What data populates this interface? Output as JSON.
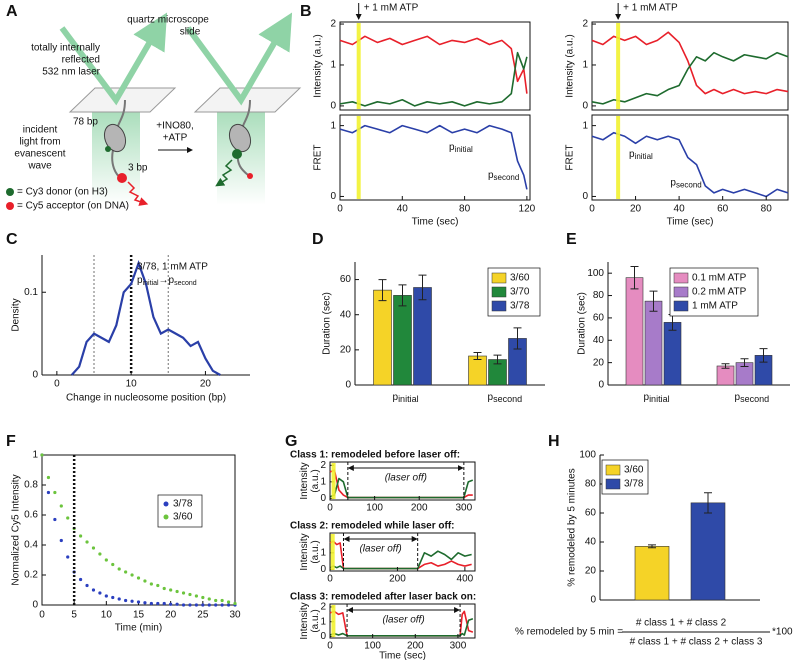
{
  "diagram": {
    "panel": "A",
    "slide_label": [
      "quartz microscope",
      "slide"
    ],
    "laser_label": [
      "totally internally",
      "reflected",
      "532 nm laser"
    ],
    "incident_label": [
      "incident",
      "light from",
      "evanescent",
      "wave"
    ],
    "bp_long": "78 bp",
    "bp_short": "3 bp",
    "step_label": [
      "+INO80,",
      "+ATP"
    ],
    "legend": [
      {
        "color": "#1e6b2e",
        "text": "= Cy3 donor (on H3)"
      },
      {
        "color": "#e8202a",
        "text": "= Cy5 acceptor (on DNA)"
      }
    ]
  },
  "chart_data": [
    {
      "type": "trace",
      "panel": "B",
      "annotation": "+ 1 mM ATP",
      "atp_time": 12,
      "x": [
        0,
        8,
        16,
        24,
        32,
        40,
        48,
        56,
        64,
        72,
        80,
        88,
        96,
        104,
        110,
        114,
        118,
        120
      ],
      "xlim": [
        0,
        122
      ],
      "xticks": [
        0,
        40,
        80,
        120
      ],
      "xlabel": "Time (sec)",
      "subplots": [
        {
          "ylabel": "Intensity (a.u.)",
          "ylim": [
            -0.1,
            2.05
          ],
          "yticks": [
            0,
            1,
            2
          ],
          "series": [
            {
              "color": "#e8202a",
              "values": [
                1.6,
                1.5,
                1.7,
                1.55,
                1.65,
                1.5,
                1.6,
                1.7,
                1.5,
                1.6,
                1.55,
                1.65,
                1.5,
                1.6,
                1.4,
                0.6,
                0.9,
                0.3
              ]
            },
            {
              "color": "#1e6b2e",
              "values": [
                0.05,
                0.1,
                0.0,
                0.1,
                0.05,
                0.15,
                0.0,
                0.1,
                0.05,
                0.1,
                0.0,
                0.1,
                0.05,
                0.1,
                0.3,
                1.3,
                0.9,
                1.2
              ]
            }
          ]
        },
        {
          "ylabel": "FRET",
          "ylim": [
            -0.05,
            1.15
          ],
          "yticks": [
            0,
            1
          ],
          "series": [
            {
              "color": "#2a3fa8",
              "values": [
                0.95,
                0.9,
                1.0,
                0.95,
                0.9,
                1.0,
                0.95,
                0.9,
                1.0,
                0.9,
                0.95,
                0.9,
                1.0,
                0.95,
                0.9,
                0.5,
                0.3,
                0.1
              ]
            }
          ],
          "state_labels": [
            [
              "p",
              "initial"
            ],
            [
              "p",
              "second"
            ]
          ]
        }
      ]
    },
    {
      "type": "trace",
      "annotation": "+ 1 mM ATP",
      "atp_time": 12,
      "x": [
        0,
        5,
        10,
        15,
        20,
        25,
        30,
        35,
        40,
        44,
        48,
        52,
        56,
        60,
        65,
        70,
        75,
        80,
        85,
        90
      ],
      "xlim": [
        0,
        90
      ],
      "xticks": [
        0,
        20,
        40,
        60,
        80
      ],
      "xlabel": "Time (sec)",
      "subplots": [
        {
          "ylabel": "Intensity (a.u.)",
          "ylim": [
            -0.1,
            2.05
          ],
          "yticks": [
            0,
            1,
            2
          ],
          "series": [
            {
              "color": "#e8202a",
              "values": [
                1.6,
                1.5,
                1.7,
                1.6,
                1.7,
                1.5,
                1.6,
                1.8,
                1.55,
                1.1,
                0.5,
                0.3,
                0.4,
                0.3,
                0.4,
                0.3,
                0.35,
                0.3,
                0.4,
                0.35
              ]
            },
            {
              "color": "#1e6b2e",
              "values": [
                0.1,
                0.05,
                0.15,
                0.1,
                0.2,
                0.3,
                0.25,
                0.4,
                0.5,
                0.9,
                1.2,
                1.1,
                1.3,
                1.2,
                1.1,
                1.25,
                1.2,
                1.15,
                1.3,
                1.2
              ]
            }
          ]
        },
        {
          "ylabel": "FRET",
          "ylim": [
            -0.05,
            1.15
          ],
          "yticks": [
            0,
            1
          ],
          "series": [
            {
              "color": "#2a3fa8",
              "values": [
                0.85,
                0.8,
                0.9,
                0.85,
                0.75,
                0.85,
                0.8,
                0.85,
                0.8,
                0.55,
                0.45,
                0.15,
                0.05,
                0.1,
                0.05,
                0.1,
                0.05,
                0.0,
                0.1,
                0.05
              ]
            }
          ],
          "state_labels": [
            [
              "p",
              "initial"
            ],
            [
              "p",
              "second"
            ]
          ]
        }
      ]
    },
    {
      "type": "density",
      "panel": "C",
      "annotation": "3/78, 1 mM ATP",
      "transition": {
        "from": [
          "p",
          "initial"
        ],
        "arrow": "→",
        "to": [
          "p",
          "second"
        ]
      },
      "x": [
        2,
        3,
        4,
        5,
        6,
        7,
        8,
        9,
        10,
        11,
        12,
        13,
        14,
        15,
        16,
        17,
        18,
        19,
        20,
        21,
        22
      ],
      "values": [
        0,
        0.01,
        0.04,
        0.05,
        0.045,
        0.04,
        0.06,
        0.1,
        0.11,
        0.135,
        0.11,
        0.07,
        0.05,
        0.055,
        0.05,
        0.045,
        0.035,
        0.04,
        0.02,
        0.005,
        0
      ],
      "color": "#2a3fa8",
      "vlines": [
        5,
        10,
        15
      ],
      "xlim": [
        -2,
        26
      ],
      "xticks": [
        0,
        10,
        20
      ],
      "ylim": [
        0,
        0.145
      ],
      "yticks": [
        0,
        0.1
      ],
      "xlabel": "Change in nucleosome position (bp)",
      "ylabel": "Density"
    },
    {
      "type": "bar",
      "panel": "D",
      "categories": [
        [
          "p",
          "initial"
        ],
        [
          "p",
          "second"
        ]
      ],
      "ylabel": "Duration (sec)",
      "ylim": [
        0,
        70
      ],
      "yticks": [
        0,
        20,
        40,
        60
      ],
      "series": [
        {
          "name": "3/60",
          "color": "#f5d327",
          "values": [
            54,
            16.5
          ],
          "errors": [
            6,
            2
          ]
        },
        {
          "name": "3/70",
          "color": "#21883b",
          "values": [
            51,
            14.5
          ],
          "errors": [
            6,
            2.5
          ]
        },
        {
          "name": "3/78",
          "color": "#2f4aa8",
          "values": [
            55.5,
            26.5
          ],
          "errors": [
            7,
            6
          ]
        }
      ]
    },
    {
      "type": "bar",
      "panel": "E",
      "categories": [
        [
          "p",
          "initial"
        ],
        [
          "p",
          "second"
        ]
      ],
      "ylabel": "Duration (sec)",
      "ylim": [
        0,
        110
      ],
      "yticks": [
        0,
        20,
        40,
        60,
        80,
        100
      ],
      "series": [
        {
          "name": "0.1 mM ATP",
          "color": "#e58cc0",
          "values": [
            96,
            17
          ],
          "errors": [
            10,
            2
          ]
        },
        {
          "name": "0.2 mM ATP",
          "color": "#a77bc9",
          "values": [
            75,
            20
          ],
          "errors": [
            9,
            3.5
          ]
        },
        {
          "name": "1 mM ATP",
          "color": "#2f4aa8",
          "values": [
            56,
            26.5
          ],
          "errors": [
            7,
            6
          ]
        }
      ]
    },
    {
      "type": "scatter",
      "panel": "F",
      "x": [
        0,
        1,
        2,
        3,
        4,
        5,
        6,
        7,
        8,
        9,
        10,
        11,
        12,
        13,
        14,
        15,
        16,
        17,
        18,
        19,
        20,
        21,
        22,
        23,
        24,
        25,
        26,
        27,
        28,
        29,
        30
      ],
      "vline": 5,
      "xlim": [
        0,
        30
      ],
      "xticks": [
        0,
        5,
        10,
        15,
        20,
        25,
        30
      ],
      "ylim": [
        0,
        1
      ],
      "yticks": [
        0,
        0.2,
        0.4,
        0.6,
        0.8,
        1
      ],
      "xlabel": "Time (min)",
      "ylabel": "Normalized Cy5 Intensity",
      "series": [
        {
          "name": "3/78",
          "color": "#2b3fbf",
          "values": [
            1,
            0.75,
            0.57,
            0.43,
            0.32,
            0.22,
            0.17,
            0.13,
            0.1,
            0.08,
            0.06,
            0.05,
            0.04,
            0.03,
            0.025,
            0.02,
            0.015,
            0.01,
            0.01,
            0.01,
            0.005,
            0.005,
            0,
            0,
            0,
            0,
            0,
            0,
            0,
            0,
            0
          ]
        },
        {
          "name": "3/60",
          "color": "#6cc43d",
          "values": [
            1,
            0.85,
            0.75,
            0.66,
            0.58,
            0.51,
            0.46,
            0.42,
            0.38,
            0.34,
            0.3,
            0.27,
            0.24,
            0.22,
            0.2,
            0.18,
            0.16,
            0.14,
            0.13,
            0.11,
            0.1,
            0.09,
            0.08,
            0.07,
            0.06,
            0.05,
            0.04,
            0.03,
            0.03,
            0.02,
            0.01
          ]
        }
      ]
    },
    {
      "type": "trace",
      "panel": "G",
      "title": "Class 1: remodeled before laser off:",
      "laser_off": [
        40,
        300
      ],
      "laser_off_label": "(laser off)",
      "atp_time": 8,
      "x": [
        0,
        10,
        20,
        30,
        40,
        300,
        310,
        320
      ],
      "xlim": [
        0,
        325
      ],
      "xticks": [
        0,
        100,
        200,
        300
      ],
      "subplots": [
        {
          "ylabel": [
            "Intensity",
            "(a.u.)"
          ],
          "ylim": [
            -0.1,
            2.2
          ],
          "yticks": [
            0,
            1,
            2
          ],
          "series": [
            {
              "color": "#e8202a",
              "values": [
                1.6,
                1.7,
                0.5,
                0.2,
                0.05,
                0.05,
                0.2,
                0.2
              ]
            },
            {
              "color": "#1e6b2e",
              "values": [
                0.1,
                0.2,
                1.2,
                1.0,
                0.05,
                0.05,
                1.0,
                1.1
              ]
            }
          ]
        }
      ]
    },
    {
      "type": "trace",
      "title": "Class 2: remodeled while laser off:",
      "laser_off": [
        40,
        260
      ],
      "laser_off_label": "(laser off)",
      "atp_time": 8,
      "x": [
        0,
        10,
        20,
        30,
        40,
        260,
        280,
        300,
        320,
        340,
        360,
        380,
        400,
        420
      ],
      "xlim": [
        0,
        430
      ],
      "xticks": [
        0,
        200,
        400
      ],
      "subplots": [
        {
          "ylabel": [
            "Intensity",
            "(a.u.)"
          ],
          "ylim": [
            -0.1,
            2.2
          ],
          "yticks": [
            0,
            1
          ],
          "series": [
            {
              "color": "#e8202a",
              "values": [
                1.6,
                1.7,
                1.5,
                1.6,
                0.05,
                0.05,
                0.3,
                0.4,
                0.2,
                0.3,
                0.5,
                0.3,
                0.2,
                0.3
              ]
            },
            {
              "color": "#1e6b2e",
              "values": [
                0.1,
                0.2,
                0.1,
                0.2,
                0.05,
                0.05,
                1.0,
                0.8,
                1.1,
                0.9,
                0.6,
                1.0,
                0.8,
                0.9
              ]
            }
          ]
        }
      ]
    },
    {
      "type": "trace",
      "title": "Class 3: remodeled after laser back on:",
      "laser_off": [
        40,
        305
      ],
      "laser_off_label": "(laser off)",
      "atp_time": 8,
      "x": [
        0,
        10,
        20,
        30,
        40,
        305,
        310,
        315,
        325,
        335
      ],
      "xlim": [
        0,
        340
      ],
      "xticks": [
        0,
        100,
        200,
        300
      ],
      "xlabel": "Time (sec)",
      "subplots": [
        {
          "ylabel": [
            "Intensity",
            "(a.u.)"
          ],
          "ylim": [
            -0.1,
            2.2
          ],
          "yticks": [
            0,
            1,
            2
          ],
          "series": [
            {
              "color": "#e8202a",
              "values": [
                1.6,
                1.7,
                1.5,
                1.6,
                0.05,
                0.05,
                1.5,
                1.7,
                0.4,
                0.3
              ]
            },
            {
              "color": "#1e6b2e",
              "values": [
                0.1,
                0.2,
                0.1,
                0.2,
                0.05,
                0.05,
                0.2,
                0.1,
                1.1,
                1.2
              ]
            }
          ]
        }
      ]
    },
    {
      "type": "bar",
      "panel": "H",
      "ylabel": "% remodeled by 5 minutes",
      "ylim": [
        0,
        100
      ],
      "yticks": [
        0,
        20,
        40,
        60,
        80,
        100
      ],
      "series": [
        {
          "name": "3/60",
          "color": "#f5d327",
          "values": [
            37
          ],
          "errors": [
            1
          ]
        },
        {
          "name": "3/78",
          "color": "#2f4aa8",
          "values": [
            67
          ],
          "errors": [
            7
          ]
        }
      ]
    }
  ],
  "formula": {
    "lhs": "% remodeled by 5 min =",
    "numerator": "# class 1 + # class 2",
    "denominator": "# class 1 + # class 2 + class 3",
    "factor": "*100"
  }
}
